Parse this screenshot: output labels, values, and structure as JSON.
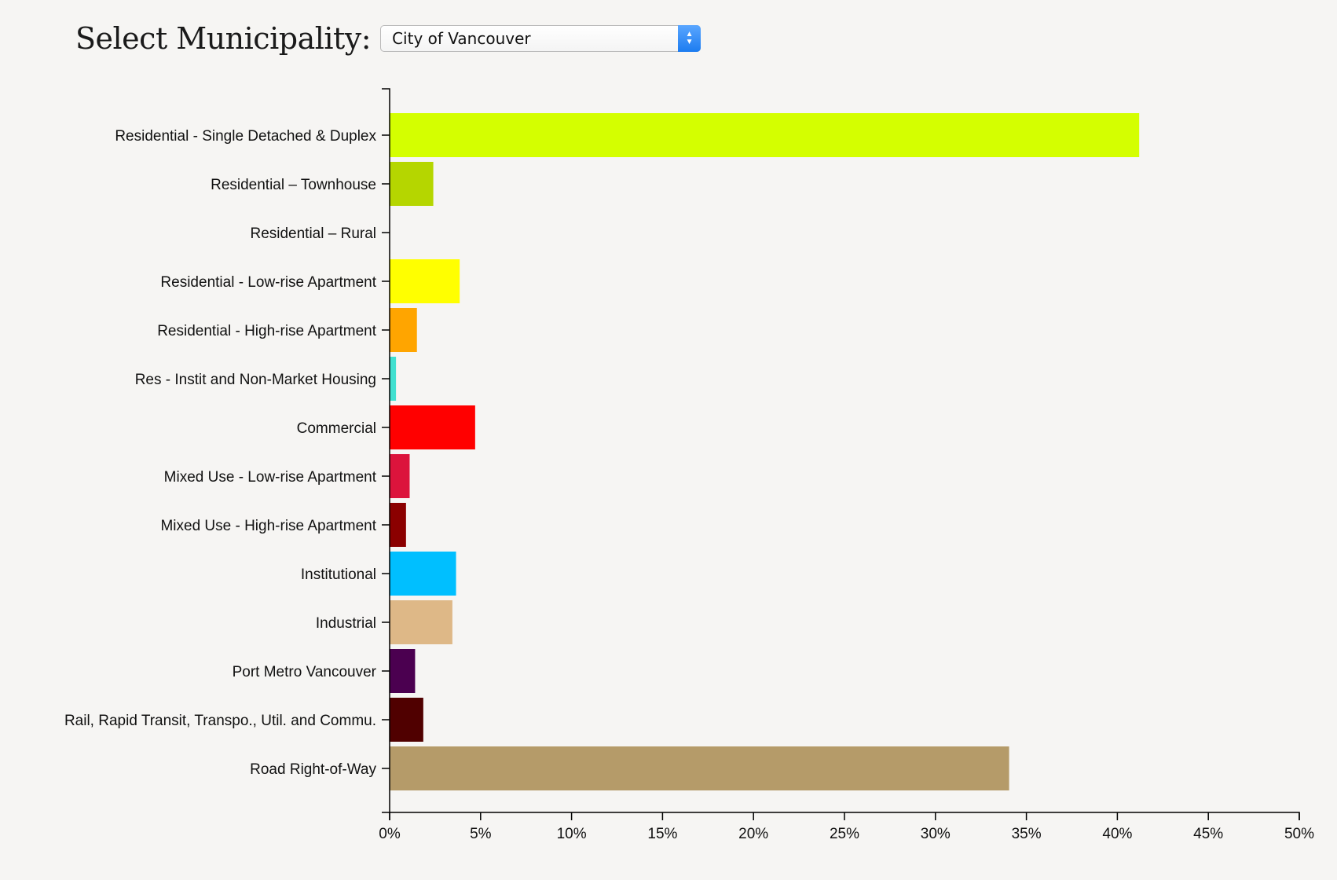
{
  "header": {
    "title": "Select Municipality:",
    "selected_municipality": "City of Vancouver"
  },
  "icons": {
    "select_arrows": "up-down-chevron-icon"
  },
  "chart_data": {
    "type": "bar",
    "orientation": "horizontal",
    "title": "",
    "xlabel": "",
    "ylabel": "",
    "xlim": [
      0,
      50
    ],
    "x_tick_values": [
      0,
      5,
      10,
      15,
      20,
      25,
      30,
      35,
      40,
      45,
      50
    ],
    "x_tick_labels": [
      "0%",
      "5%",
      "10%",
      "15%",
      "20%",
      "25%",
      "30%",
      "35%",
      "40%",
      "45%",
      "50%"
    ],
    "grid": false,
    "categories": [
      "Residential - Single Detached & Duplex",
      "Residential – Townhouse",
      "Residential – Rural",
      "Residential - Low-rise Apartment",
      "Residential - High-rise Apartment",
      "Res - Instit and Non-Market Housing",
      "Commercial",
      "Mixed Use - Low-rise Apartment",
      "Mixed Use - High-rise Apartment",
      "Institutional",
      "Industrial",
      "Port Metro Vancouver",
      "Rail, Rapid Transit, Transpo., Util. and Commu.",
      "Road Right-of-Way"
    ],
    "values": [
      41.2,
      2.4,
      0.0,
      3.85,
      1.5,
      0.35,
      4.7,
      1.1,
      0.9,
      3.65,
      3.45,
      1.4,
      1.85,
      34.05
    ],
    "colors": [
      "#d4ff00",
      "#b5d600",
      "#cccccc",
      "#ffff00",
      "#ffa500",
      "#40e0d0",
      "#ff0000",
      "#dc143c",
      "#8b0000",
      "#00bfff",
      "#deb887",
      "#4b0050",
      "#500000",
      "#b59b69"
    ]
  }
}
